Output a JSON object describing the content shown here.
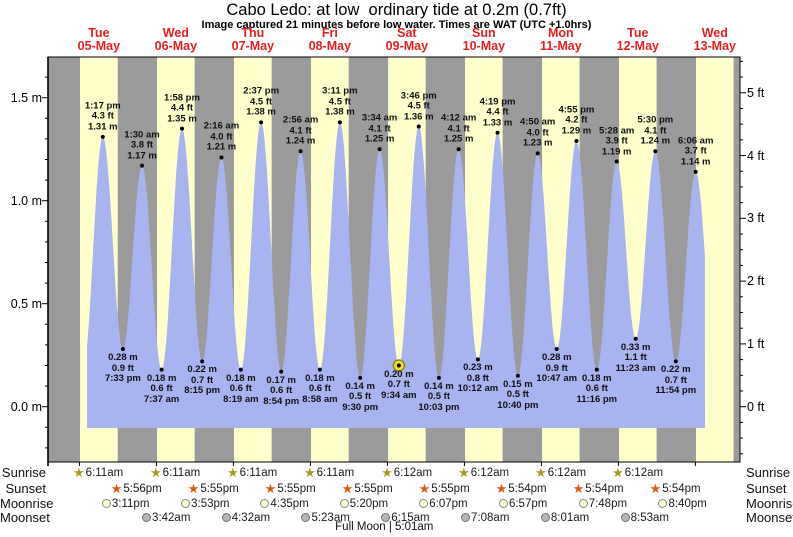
{
  "title": "Cabo Ledo: at low  ordinary tide at 0.2m (0.7ft)",
  "subtitle": "Image captured 21 minutes before low water. Times are WAT (UTC +1.0hrs)",
  "days": [
    {
      "weekday": "Tue",
      "date": "05-May"
    },
    {
      "weekday": "Wed",
      "date": "06-May"
    },
    {
      "weekday": "Thu",
      "date": "07-May"
    },
    {
      "weekday": "Fri",
      "date": "08-May"
    },
    {
      "weekday": "Sat",
      "date": "09-May"
    },
    {
      "weekday": "Sun",
      "date": "10-May"
    },
    {
      "weekday": "Mon",
      "date": "11-May"
    },
    {
      "weekday": "Tue",
      "date": "12-May"
    },
    {
      "weekday": "Wed",
      "date": "13-May"
    }
  ],
  "y_axis_left": {
    "unit": "m",
    "values": [
      1.5,
      1.0,
      0.5,
      0.0
    ],
    "labels": [
      "1.5 m",
      "1.0 m",
      "0.5 m",
      "0.0 m"
    ]
  },
  "y_axis_right": {
    "unit": "ft",
    "values": [
      5,
      4,
      3,
      2,
      1,
      0
    ],
    "labels": [
      "5 ft",
      "4 ft",
      "3 ft",
      "2 ft",
      "1 ft",
      "0 ft"
    ]
  },
  "chart_data": {
    "type": "area",
    "series_name": "tide height",
    "day_label_color": "#e32020",
    "colors": {
      "fill": "#a8b4f0",
      "day_band": "#ffffcc",
      "night_band": "#9b9b9b",
      "marker_fill": "#f1e13a",
      "marker_ring": "#8a8a00",
      "dot": "#000000"
    },
    "ylim_m": [
      -0.27,
      1.7
    ],
    "events": [
      {
        "day": 0,
        "time": "1:17 pm",
        "type": "high",
        "m": 1.31,
        "ft": 4.3
      },
      {
        "day": 0,
        "time": "7:33 pm",
        "type": "low",
        "m": 0.28,
        "ft": 0.9
      },
      {
        "day": 1,
        "time": "1:30 am",
        "type": "high",
        "m": 1.17,
        "ft": 3.8
      },
      {
        "day": 1,
        "time": "7:37 am",
        "type": "low",
        "m": 0.18,
        "ft": 0.6
      },
      {
        "day": 1,
        "time": "1:58 pm",
        "type": "high",
        "m": 1.35,
        "ft": 4.4
      },
      {
        "day": 1,
        "time": "8:15 pm",
        "type": "low",
        "m": 0.22,
        "ft": 0.7
      },
      {
        "day": 2,
        "time": "2:16 am",
        "type": "high",
        "m": 1.21,
        "ft": 4.0
      },
      {
        "day": 2,
        "time": "8:19 am",
        "type": "low",
        "m": 0.18,
        "ft": 0.6
      },
      {
        "day": 2,
        "time": "2:37 pm",
        "type": "high",
        "m": 1.38,
        "ft": 4.5
      },
      {
        "day": 2,
        "time": "8:54 pm",
        "type": "low",
        "m": 0.17,
        "ft": 0.6
      },
      {
        "day": 3,
        "time": "2:56 am",
        "type": "high",
        "m": 1.24,
        "ft": 4.1
      },
      {
        "day": 3,
        "time": "8:58 am",
        "type": "low",
        "m": 0.18,
        "ft": 0.6
      },
      {
        "day": 3,
        "time": "3:11 pm",
        "type": "high",
        "m": 1.38,
        "ft": 4.5
      },
      {
        "day": 3,
        "time": "9:30 pm",
        "type": "low",
        "m": 0.14,
        "ft": 0.5
      },
      {
        "day": 4,
        "time": "3:34 am",
        "type": "high",
        "m": 1.25,
        "ft": 4.1
      },
      {
        "day": 4,
        "time": "9:34 am",
        "type": "low",
        "m": 0.2,
        "ft": 0.7,
        "current": true
      },
      {
        "day": 4,
        "time": "3:46 pm",
        "type": "high",
        "m": 1.36,
        "ft": 4.5
      },
      {
        "day": 4,
        "time": "10:03 pm",
        "type": "low",
        "m": 0.14,
        "ft": 0.5
      },
      {
        "day": 5,
        "time": "4:12 am",
        "type": "high",
        "m": 1.25,
        "ft": 4.1
      },
      {
        "day": 5,
        "time": "10:12 am",
        "type": "low",
        "m": 0.23,
        "ft": 0.8
      },
      {
        "day": 5,
        "time": "4:19 pm",
        "type": "high",
        "m": 1.33,
        "ft": 4.4
      },
      {
        "day": 5,
        "time": "10:40 pm",
        "type": "low",
        "m": 0.15,
        "ft": 0.5
      },
      {
        "day": 6,
        "time": "4:50 am",
        "type": "high",
        "m": 1.23,
        "ft": 4.0
      },
      {
        "day": 6,
        "time": "10:47 am",
        "type": "low",
        "m": 0.28,
        "ft": 0.9
      },
      {
        "day": 6,
        "time": "4:55 pm",
        "type": "high",
        "m": 1.29,
        "ft": 4.2
      },
      {
        "day": 6,
        "time": "11:16 pm",
        "type": "low",
        "m": 0.18,
        "ft": 0.6
      },
      {
        "day": 7,
        "time": "5:28 am",
        "type": "high",
        "m": 1.19,
        "ft": 3.9
      },
      {
        "day": 7,
        "time": "11:23 am",
        "type": "low",
        "m": 0.33,
        "ft": 1.1
      },
      {
        "day": 7,
        "time": "5:30 pm",
        "type": "high",
        "m": 1.24,
        "ft": 4.1
      },
      {
        "day": 7,
        "time": "11:54 pm",
        "type": "low",
        "m": 0.22,
        "ft": 0.7
      },
      {
        "day": 8,
        "time": "6:06 am",
        "type": "high",
        "m": 1.14,
        "ft": 3.7
      }
    ]
  },
  "astro": {
    "rows": [
      {
        "name": "Sunrise",
        "icon": "sunrise-star",
        "entries": [
          {
            "day": 0,
            "time": "6:11am"
          },
          {
            "day": 1,
            "time": "6:11am"
          },
          {
            "day": 2,
            "time": "6:11am"
          },
          {
            "day": 3,
            "time": "6:11am"
          },
          {
            "day": 4,
            "time": "6:12am"
          },
          {
            "day": 5,
            "time": "6:12am"
          },
          {
            "day": 6,
            "time": "6:12am"
          },
          {
            "day": 7,
            "time": "6:12am"
          }
        ]
      },
      {
        "name": "Sunset",
        "icon": "sunset-star",
        "entries": [
          {
            "day": 0,
            "time": "5:56pm"
          },
          {
            "day": 1,
            "time": "5:55pm"
          },
          {
            "day": 2,
            "time": "5:55pm"
          },
          {
            "day": 3,
            "time": "5:55pm"
          },
          {
            "day": 4,
            "time": "5:55pm"
          },
          {
            "day": 5,
            "time": "5:54pm"
          },
          {
            "day": 6,
            "time": "5:54pm"
          },
          {
            "day": 7,
            "time": "5:54pm"
          }
        ]
      },
      {
        "name": "Moonrise",
        "icon": "moonrise-circle",
        "entries": [
          {
            "day": 0,
            "time": "3:11pm"
          },
          {
            "day": 1,
            "time": "3:53pm"
          },
          {
            "day": 2,
            "time": "4:35pm"
          },
          {
            "day": 3,
            "time": "5:20pm"
          },
          {
            "day": 4,
            "time": "6:07pm"
          },
          {
            "day": 5,
            "time": "6:57pm"
          },
          {
            "day": 6,
            "time": "7:48pm"
          },
          {
            "day": 7,
            "time": "8:40pm"
          }
        ]
      },
      {
        "name": "Moonset",
        "icon": "moonset-circle",
        "entries": [
          {
            "day": 1,
            "time": "3:42am"
          },
          {
            "day": 2,
            "time": "4:32am"
          },
          {
            "day": 3,
            "time": "5:23am"
          },
          {
            "day": 4,
            "time": "6:15am"
          },
          {
            "day": 5,
            "time": "7:08am"
          },
          {
            "day": 6,
            "time": "8:01am"
          },
          {
            "day": 7,
            "time": "8:53am"
          }
        ]
      }
    ],
    "icon_colors": {
      "sunrise": "#a89a20",
      "sunset": "#d85c12"
    },
    "full_moon": "Full Moon | 5:01am",
    "full_moon_day": 4,
    "full_moon_time": "5:01am"
  }
}
